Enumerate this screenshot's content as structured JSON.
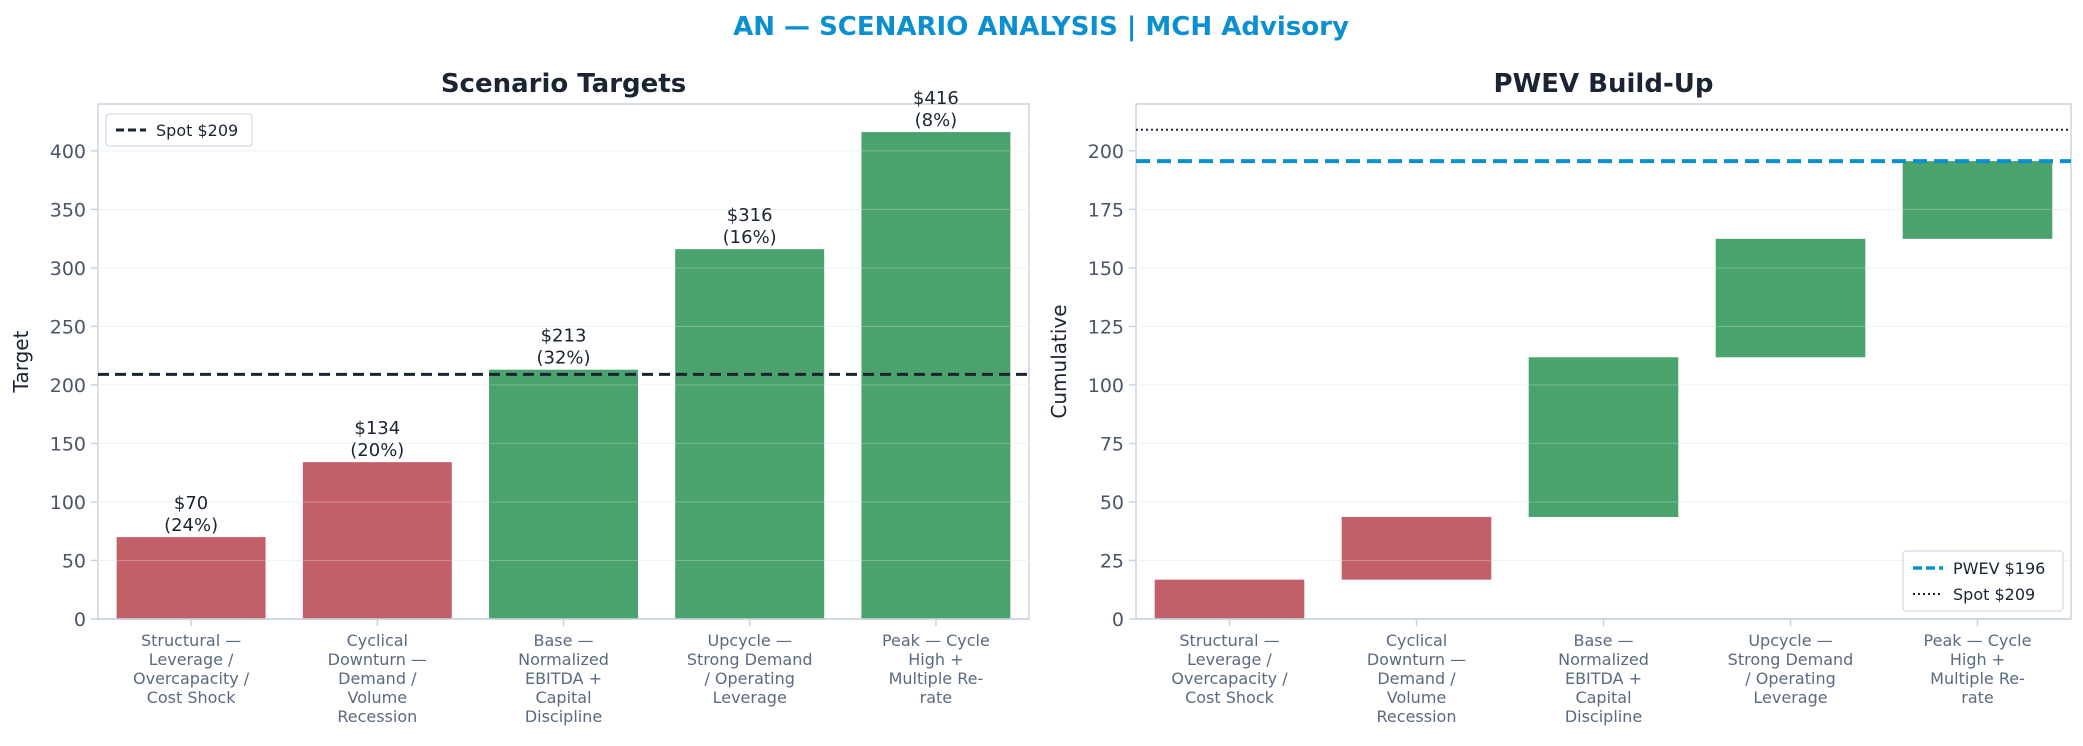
{
  "suptitle": "AN — SCENARIO ANALYSIS | MCH Advisory",
  "colors": {
    "accent": "#0a8fd0",
    "negative": "#c2606a",
    "positive": "#4aa26d",
    "spot": "#1a2433",
    "axis": "#c9d3df",
    "grid": "#eef1f5",
    "text": "#1a2433"
  },
  "chart_data": [
    {
      "type": "bar",
      "title": "Scenario Targets",
      "xlabel": "",
      "ylabel": "Target",
      "categories": [
        "Structural — Leverage / Overcapacity / Cost Shock",
        "Cyclical Downturn — Demand / Volume Recession",
        "Base — Normalized EBITDA + Capital Discipline",
        "Upcycle — Strong Demand / Operating Leverage",
        "Peak — Cycle High + Multiple Re-rate"
      ],
      "category_lines": [
        [
          "Structural —",
          "Leverage /",
          "Overcapacity /",
          "Cost Shock"
        ],
        [
          "Cyclical",
          "Downturn —",
          "Demand /",
          "Volume",
          "Recession"
        ],
        [
          "Base —",
          "Normalized",
          "EBITDA +",
          "Capital",
          "Discipline"
        ],
        [
          "Upcycle —",
          "Strong Demand",
          "/ Operating",
          "Leverage"
        ],
        [
          "Peak — Cycle",
          "High +",
          "Multiple Re-",
          "rate"
        ]
      ],
      "values": [
        70,
        134,
        213,
        316,
        416
      ],
      "value_labels": [
        "$70",
        "$134",
        "$213",
        "$316",
        "$416"
      ],
      "prob_labels": [
        "(24%)",
        "(20%)",
        "(32%)",
        "(16%)",
        "(8%)"
      ],
      "bar_kind": [
        "negative",
        "negative",
        "positive",
        "positive",
        "positive"
      ],
      "reference_line": {
        "label": "Spot $209",
        "value": 209,
        "style": "dashed"
      },
      "yticks": [
        0,
        50,
        100,
        150,
        200,
        250,
        300,
        350,
        400
      ],
      "ylim": [
        0,
        440
      ],
      "grid": true,
      "legend": "top-left"
    },
    {
      "type": "bar",
      "subtype": "waterfall",
      "title": "PWEV Build-Up",
      "xlabel": "",
      "ylabel": "Cumulative",
      "categories": [
        "Structural — Leverage / Overcapacity / Cost Shock",
        "Cyclical Downturn — Demand / Volume Recession",
        "Base — Normalized EBITDA + Capital Discipline",
        "Upcycle — Strong Demand / Operating Leverage",
        "Peak — Cycle High + Multiple Re-rate"
      ],
      "category_lines": [
        [
          "Structural —",
          "Leverage /",
          "Overcapacity /",
          "Cost Shock"
        ],
        [
          "Cyclical",
          "Downturn —",
          "Demand /",
          "Volume",
          "Recession"
        ],
        [
          "Base —",
          "Normalized",
          "EBITDA +",
          "Capital",
          "Discipline"
        ],
        [
          "Upcycle —",
          "Strong Demand",
          "/ Operating",
          "Leverage"
        ],
        [
          "Peak — Cycle",
          "High +",
          "Multiple Re-",
          "rate"
        ]
      ],
      "segments": [
        {
          "start": 0,
          "end": 16.8
        },
        {
          "start": 16.8,
          "end": 43.6
        },
        {
          "start": 43.6,
          "end": 111.8
        },
        {
          "start": 111.8,
          "end": 162.4
        },
        {
          "start": 162.4,
          "end": 195.6
        }
      ],
      "bar_kind": [
        "negative",
        "negative",
        "positive",
        "positive",
        "positive"
      ],
      "reference_lines": [
        {
          "label": "PWEV $196",
          "value": 195.6,
          "style": "dashed"
        },
        {
          "label": "Spot $209",
          "value": 209,
          "style": "dotted"
        }
      ],
      "yticks": [
        0,
        25,
        50,
        75,
        100,
        125,
        150,
        175,
        200
      ],
      "ylim": [
        0,
        220
      ],
      "grid": true,
      "legend": "bottom-right"
    }
  ]
}
